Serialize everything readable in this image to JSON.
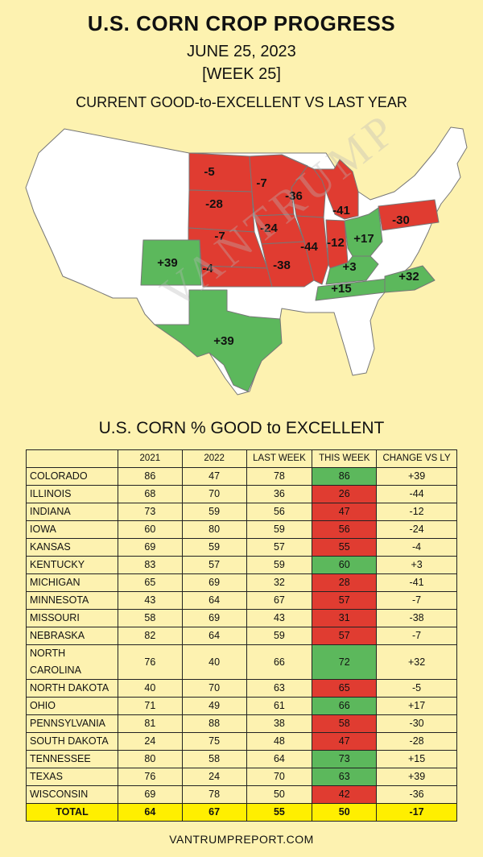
{
  "header": {
    "title": "U.S. CORN CROP PROGRESS",
    "date": "JUNE 25, 2023",
    "week": "[WEEK 25]",
    "subtitle": "CURRENT GOOD-to-EXCELLENT VS LAST YEAR"
  },
  "watermark": "VANTRUMP",
  "colors": {
    "background": "#fdf2b0",
    "positive": "#5cb85c",
    "negative": "#e03c31",
    "neutral_state": "#ffffff",
    "total_row": "#ffef00"
  },
  "map": {
    "labels": [
      {
        "state": "North Dakota",
        "text": "-5"
      },
      {
        "state": "Minnesota",
        "text": "-7"
      },
      {
        "state": "South Dakota",
        "text": "-28"
      },
      {
        "state": "Wisconsin",
        "text": "-36"
      },
      {
        "state": "Michigan",
        "text": "-41"
      },
      {
        "state": "Pennsylvania",
        "text": "-30"
      },
      {
        "state": "Nebraska",
        "text": "-7"
      },
      {
        "state": "Iowa",
        "text": "-24"
      },
      {
        "state": "Ohio",
        "text": "+17"
      },
      {
        "state": "Colorado",
        "text": "+39"
      },
      {
        "state": "Illinois",
        "text": "-44"
      },
      {
        "state": "Indiana",
        "text": "-12"
      },
      {
        "state": "Kansas",
        "text": "-4"
      },
      {
        "state": "Missouri",
        "text": "-38"
      },
      {
        "state": "Kentucky",
        "text": "+3"
      },
      {
        "state": "Tennessee",
        "text": "+15"
      },
      {
        "state": "North Carolina",
        "text": "+32"
      },
      {
        "state": "Texas",
        "text": "+39"
      }
    ]
  },
  "chart_data": {
    "type": "table",
    "title": "U.S. CORN % GOOD to EXCELLENT",
    "columns": [
      "",
      "2021",
      "2022",
      "LAST WEEK",
      "THIS WEEK",
      "CHANGE VS LY"
    ],
    "rows": [
      {
        "state": "COLORADO",
        "y2021": 86,
        "y2022": 47,
        "last_week": 78,
        "this_week": 86,
        "change": "+39"
      },
      {
        "state": "ILLINOIS",
        "y2021": 68,
        "y2022": 70,
        "last_week": 36,
        "this_week": 26,
        "change": "-44"
      },
      {
        "state": "INDIANA",
        "y2021": 73,
        "y2022": 59,
        "last_week": 56,
        "this_week": 47,
        "change": "-12"
      },
      {
        "state": "IOWA",
        "y2021": 60,
        "y2022": 80,
        "last_week": 59,
        "this_week": 56,
        "change": "-24"
      },
      {
        "state": "KANSAS",
        "y2021": 69,
        "y2022": 59,
        "last_week": 57,
        "this_week": 55,
        "change": "-4"
      },
      {
        "state": "KENTUCKY",
        "y2021": 83,
        "y2022": 57,
        "last_week": 59,
        "this_week": 60,
        "change": "+3"
      },
      {
        "state": "MICHIGAN",
        "y2021": 65,
        "y2022": 69,
        "last_week": 32,
        "this_week": 28,
        "change": "-41"
      },
      {
        "state": "MINNESOTA",
        "y2021": 43,
        "y2022": 64,
        "last_week": 67,
        "this_week": 57,
        "change": "-7"
      },
      {
        "state": "MISSOURI",
        "y2021": 58,
        "y2022": 69,
        "last_week": 43,
        "this_week": 31,
        "change": "-38"
      },
      {
        "state": "NEBRASKA",
        "y2021": 82,
        "y2022": 64,
        "last_week": 59,
        "this_week": 57,
        "change": "-7"
      },
      {
        "state": "NORTH CAROLINA",
        "y2021": 76,
        "y2022": 40,
        "last_week": 66,
        "this_week": 72,
        "change": "+32"
      },
      {
        "state": "NORTH DAKOTA",
        "y2021": 40,
        "y2022": 70,
        "last_week": 63,
        "this_week": 65,
        "change": "-5"
      },
      {
        "state": "OHIO",
        "y2021": 71,
        "y2022": 49,
        "last_week": 61,
        "this_week": 66,
        "change": "+17"
      },
      {
        "state": "PENNSYLVANIA",
        "y2021": 81,
        "y2022": 88,
        "last_week": 38,
        "this_week": 58,
        "change": "-30"
      },
      {
        "state": "SOUTH DAKOTA",
        "y2021": 24,
        "y2022": 75,
        "last_week": 48,
        "this_week": 47,
        "change": "-28"
      },
      {
        "state": "TENNESSEE",
        "y2021": 80,
        "y2022": 58,
        "last_week": 64,
        "this_week": 73,
        "change": "+15"
      },
      {
        "state": "TEXAS",
        "y2021": 76,
        "y2022": 24,
        "last_week": 70,
        "this_week": 63,
        "change": "+39"
      },
      {
        "state": "WISCONSIN",
        "y2021": 69,
        "y2022": 78,
        "last_week": 50,
        "this_week": 42,
        "change": "-36"
      }
    ],
    "total": {
      "label": "TOTAL",
      "y2021": 64,
      "y2022": 67,
      "last_week": 55,
      "this_week": 50,
      "change": "-17"
    }
  },
  "footer": "VANTRUMPREPORT.COM"
}
